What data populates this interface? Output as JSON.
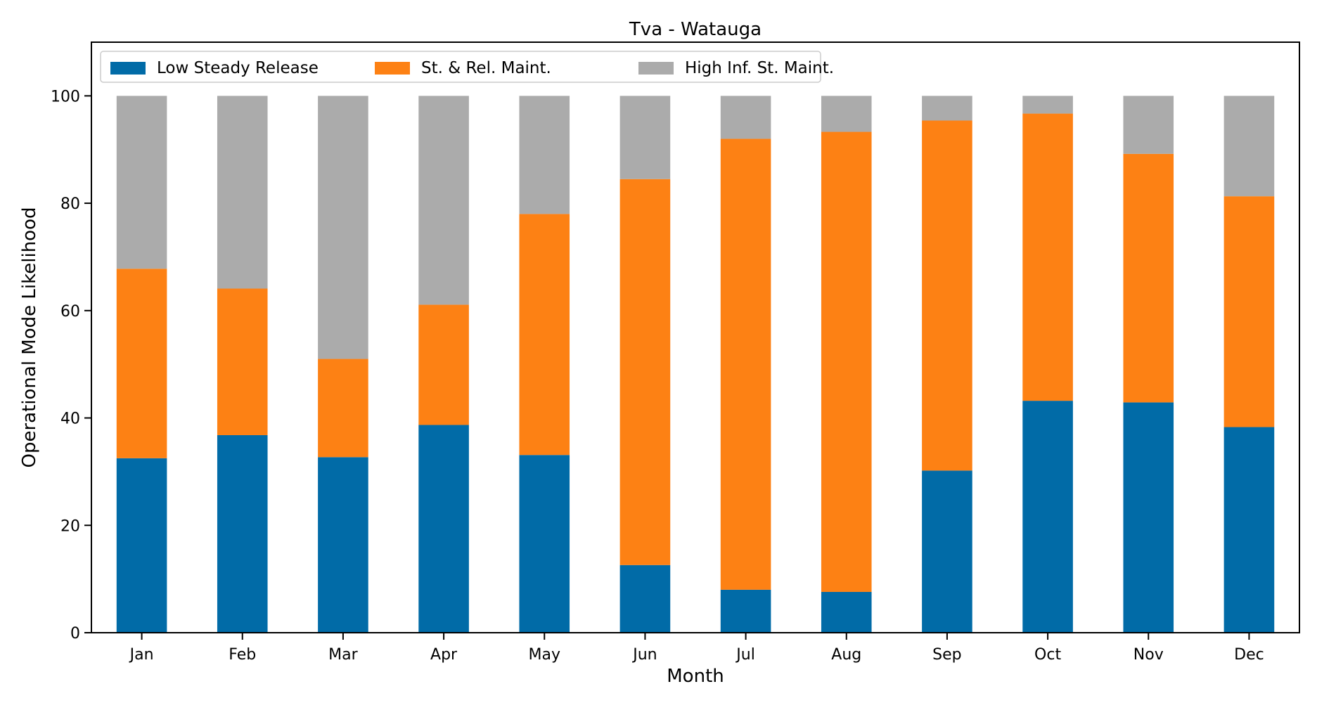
{
  "chart_data": {
    "type": "bar",
    "stacked": true,
    "title": "Tva - Watauga",
    "xlabel": "Month",
    "ylabel": "Operational Mode Likelihood",
    "categories": [
      "Jan",
      "Feb",
      "Mar",
      "Apr",
      "May",
      "Jun",
      "Jul",
      "Aug",
      "Sep",
      "Oct",
      "Nov",
      "Dec"
    ],
    "ylim": [
      0,
      110
    ],
    "yticks": [
      0,
      20,
      40,
      60,
      80,
      100
    ],
    "legend_position": "top-left",
    "grid": false,
    "series": [
      {
        "name": "Low Steady Release",
        "color": "#016ba7",
        "values": [
          32.5,
          36.8,
          32.7,
          38.7,
          33.1,
          12.6,
          8.0,
          7.6,
          30.2,
          43.2,
          42.9,
          38.3
        ]
      },
      {
        "name": "St. & Rel. Maint.",
        "color": "#fd8114",
        "values": [
          35.3,
          27.3,
          18.3,
          22.4,
          44.9,
          71.9,
          84.0,
          85.7,
          65.2,
          53.5,
          46.3,
          43.0
        ]
      },
      {
        "name": "High Inf. St. Maint.",
        "color": "#ababab",
        "values": [
          32.2,
          35.9,
          49.0,
          38.9,
          22.0,
          15.5,
          8.0,
          6.7,
          4.6,
          3.3,
          10.8,
          18.7
        ]
      }
    ]
  }
}
